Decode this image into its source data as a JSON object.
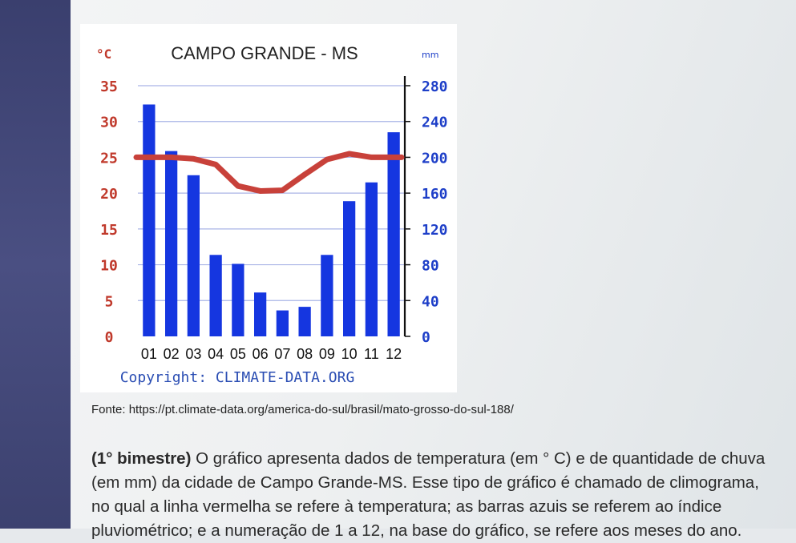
{
  "chart_data": {
    "type": "bar",
    "title": "CAMPO GRANDE - MS",
    "categories": [
      "01",
      "02",
      "03",
      "04",
      "05",
      "06",
      "07",
      "08",
      "09",
      "10",
      "11",
      "12"
    ],
    "left_axis": {
      "unit": "°C",
      "ticks": [
        "35",
        "30",
        "25",
        "20",
        "15",
        "10",
        "5",
        "0"
      ],
      "range": [
        0,
        35
      ]
    },
    "right_axis": {
      "unit": "mm",
      "ticks": [
        "280",
        "240",
        "200",
        "160",
        "120",
        "80",
        "40",
        "0"
      ],
      "range": [
        0,
        280
      ]
    },
    "series": [
      {
        "type": "bar",
        "axis": "right",
        "values": [
          259,
          207,
          180,
          91,
          81,
          49,
          29,
          33,
          91,
          151,
          172,
          228
        ]
      },
      {
        "type": "line",
        "axis": "left",
        "values": [
          25,
          25,
          24.8,
          24,
          21,
          20.3,
          20.4,
          22.6,
          24.7,
          25.5,
          25,
          25
        ]
      }
    ],
    "annotation": "Copyright: CLIMATE-DATA.ORG",
    "grid": true,
    "colors": {
      "bars": "#1536e0",
      "line": "#c8413a",
      "left_axis_text": "#c0392b",
      "right_axis_text": "#1e3fc8",
      "grid": "#aab4e6"
    }
  },
  "page": {
    "source": "Fonte: https://pt.climate-data.org/america-do-sul/brasil/mato-grosso-do-sul-188/",
    "paragraph": {
      "bold": "(1° bimestre)",
      "line1": " O gráfico apresenta dados de temperatura (em ° C) e de quantidade de chuva",
      "line2": "(em mm) da cidade de Campo Grande-MS. Esse tipo de gráfico é chamado de climograma,",
      "line3": "no qual a linha vermelha se refere à temperatura; as barras azuis se referem ao índice",
      "line4": "pluviométrico; e a numeração de 1 a 12, na base do gráfico, se refere aos meses do ano."
    }
  }
}
